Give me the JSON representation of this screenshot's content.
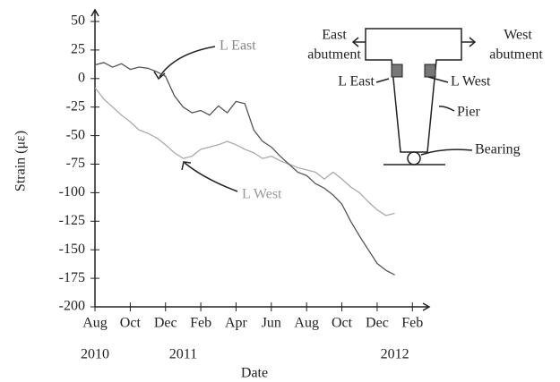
{
  "chart_data": {
    "type": "line",
    "xlabel": "Date",
    "ylabel": "Strain (με)",
    "xlim": [
      0,
      18.9
    ],
    "xticks": [
      {
        "value": 0,
        "label": "Aug"
      },
      {
        "value": 2,
        "label": "Oct"
      },
      {
        "value": 4,
        "label": "Dec"
      },
      {
        "value": 6,
        "label": "Feb"
      },
      {
        "value": 8,
        "label": "Apr"
      },
      {
        "value": 10,
        "label": "Jun"
      },
      {
        "value": 12,
        "label": "Aug"
      },
      {
        "value": 14,
        "label": "Oct"
      },
      {
        "value": 16,
        "label": "Dec"
      },
      {
        "value": 18,
        "label": "Feb"
      }
    ],
    "year_labels": [
      {
        "value": 0,
        "label": "2010"
      },
      {
        "value": 5,
        "label": "2011"
      },
      {
        "value": 17,
        "label": "2012"
      }
    ],
    "ylim": [
      -200,
      50
    ],
    "yticks": [
      -200,
      -175,
      -150,
      -125,
      -100,
      -75,
      -50,
      -25,
      0,
      25,
      50
    ],
    "x": [
      0,
      0.5,
      1,
      1.5,
      2,
      2.5,
      3,
      3.5,
      4,
      4.5,
      5,
      5.5,
      6,
      6.5,
      7,
      7.5,
      8,
      8.5,
      9,
      9.5,
      10,
      10.5,
      11,
      11.5,
      12,
      12.5,
      13,
      13.5,
      14,
      14.5,
      15,
      15.5,
      16,
      16.5,
      17
    ],
    "series": [
      {
        "name": "L East",
        "color": "#555555",
        "values": [
          12,
          14,
          10,
          13,
          8,
          10,
          9,
          6,
          2,
          -15,
          -25,
          -30,
          -28,
          -32,
          -24,
          -30,
          -20,
          -22,
          -45,
          -55,
          -60,
          -68,
          -75,
          -82,
          -85,
          -92,
          -96,
          -102,
          -110,
          -125,
          -138,
          -150,
          -162,
          -168,
          -172
        ]
      },
      {
        "name": "L West",
        "color": "#aaaaaa",
        "values": [
          -8,
          -18,
          -25,
          -32,
          -38,
          -45,
          -48,
          -52,
          -58,
          -65,
          -70,
          -68,
          -62,
          -60,
          -58,
          -55,
          -58,
          -62,
          -65,
          -70,
          -68,
          -72,
          -75,
          -78,
          -80,
          -82,
          -88,
          -82,
          -88,
          -95,
          -100,
          -108,
          -115,
          -120,
          -118
        ]
      }
    ],
    "inset": {
      "east": "East",
      "east_sub": "abutment",
      "west": "West",
      "west_sub": "abutment",
      "l_east": "L East",
      "l_west": "L West",
      "pier": "Pier",
      "bearing": "Bearing"
    }
  }
}
